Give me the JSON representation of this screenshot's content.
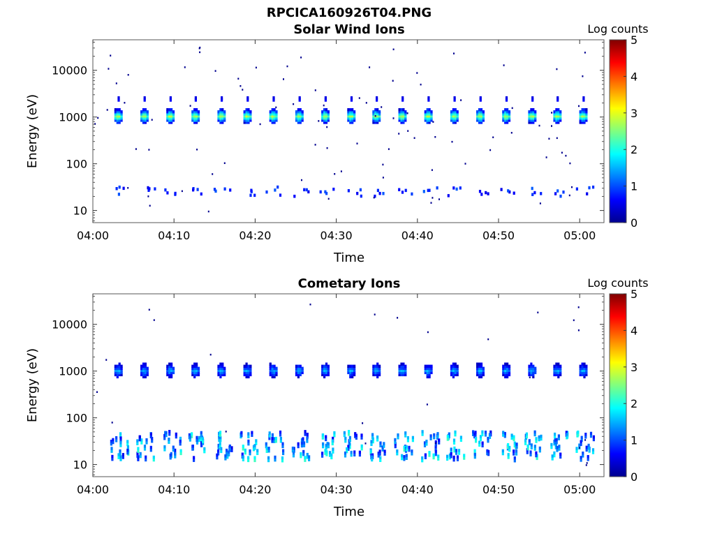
{
  "figure": {
    "title": "RPCICA160926T04.PNG"
  },
  "chart_data": [
    {
      "type": "heatmap",
      "title": "Solar Wind Ions",
      "xlabel": "Time",
      "ylabel": "Energy (eV)",
      "x_ticks": [
        "04:00",
        "04:10",
        "04:20",
        "04:30",
        "04:40",
        "04:50",
        "05:00"
      ],
      "xlim": [
        "04:00",
        "05:03"
      ],
      "y_scale": "log",
      "y_ticks": [
        "10",
        "100",
        "1000",
        "10000"
      ],
      "ylim": [
        5.5,
        45000
      ],
      "colorbar": {
        "label": "Log counts",
        "ticks": [
          "0",
          "1",
          "2",
          "3",
          "4",
          "5"
        ],
        "range": [
          0,
          5
        ],
        "colormap": "jet"
      },
      "sweep_times_min": [
        3.0,
        6.2,
        9.4,
        12.5,
        15.7,
        18.9,
        22.1,
        25.3,
        28.5,
        31.7,
        34.8,
        38.0,
        41.2,
        44.4,
        47.6,
        50.8,
        54.0,
        57.1,
        60.3
      ],
      "peak_energy_eV": 1050,
      "peak_log_counts": 3.0,
      "high_shoulder_energy_eV": 2300,
      "low_energy_band_eV": [
        20,
        32
      ],
      "low_energy_band_log_counts": 0.8
    },
    {
      "type": "heatmap",
      "title": "Cometary Ions",
      "xlabel": "Time",
      "ylabel": "Energy (eV)",
      "x_ticks": [
        "04:00",
        "04:10",
        "04:20",
        "04:30",
        "04:40",
        "04:50",
        "05:00"
      ],
      "xlim": [
        "04:00",
        "05:03"
      ],
      "y_scale": "log",
      "y_ticks": [
        "10",
        "100",
        "1000",
        "10000"
      ],
      "ylim": [
        5.5,
        45000
      ],
      "colorbar": {
        "label": "Log counts",
        "ticks": [
          "0",
          "1",
          "2",
          "3",
          "4",
          "5"
        ],
        "range": [
          0,
          5
        ],
        "colormap": "jet"
      },
      "sweep_times_min": [
        3.0,
        6.2,
        9.4,
        12.5,
        15.7,
        18.9,
        22.1,
        25.3,
        28.5,
        31.7,
        34.8,
        38.0,
        41.2,
        44.4,
        47.6,
        50.8,
        54.0,
        57.1,
        60.3
      ],
      "peak_energy_eV": 1030,
      "peak_log_counts": 1.6,
      "low_energy_band_eV": [
        12,
        45
      ],
      "low_energy_band_log_counts": 1.5
    }
  ]
}
